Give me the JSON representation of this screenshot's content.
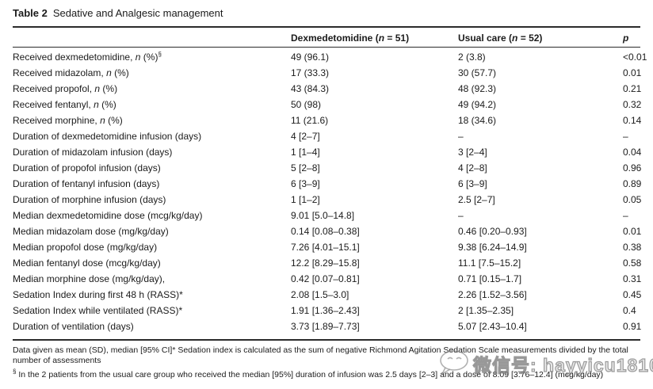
{
  "table": {
    "title": {
      "label": "Table 2",
      "text": "Sedative and Analgesic management"
    },
    "header": {
      "dex": {
        "pre": "Dexmedetomidine (",
        "it": "n",
        "post": " = 51)"
      },
      "usual": {
        "pre": "Usual care (",
        "it": "n",
        "post": " = 52)"
      },
      "p": {
        "it": "p"
      }
    },
    "rows": [
      {
        "label": {
          "pre": "Received dexmedetomidine, ",
          "it": "n",
          "post": " (%)",
          "sup": "§"
        },
        "dex": "49 (96.1)",
        "usual": "2 (3.8)",
        "p": "<0.01"
      },
      {
        "label": {
          "pre": "Received midazolam, ",
          "it": "n",
          "post": " (%)"
        },
        "dex": "17 (33.3)",
        "usual": "30 (57.7)",
        "p": "0.01"
      },
      {
        "label": {
          "pre": "Received propofol, ",
          "it": "n",
          "post": " (%)"
        },
        "dex": "43 (84.3)",
        "usual": "48 (92.3)",
        "p": "0.21"
      },
      {
        "label": {
          "pre": "Received fentanyl, ",
          "it": "n",
          "post": " (%)"
        },
        "dex": "50 (98)",
        "usual": "49 (94.2)",
        "p": "0.32"
      },
      {
        "label": {
          "pre": "Received morphine, ",
          "it": "n",
          "post": " (%)"
        },
        "dex": "11 (21.6)",
        "usual": "18 (34.6)",
        "p": "0.14"
      },
      {
        "label": {
          "pre": "Duration of dexmedetomidine infusion (days)"
        },
        "dex": "4 [2–7]",
        "usual": "–",
        "p": "–"
      },
      {
        "label": {
          "pre": "Duration of midazolam infusion (days)"
        },
        "dex": "1 [1–4]",
        "usual": "3 [2–4]",
        "p": "0.04"
      },
      {
        "label": {
          "pre": "Duration of propofol infusion (days)"
        },
        "dex": "5 [2–8]",
        "usual": "4 [2–8]",
        "p": "0.96"
      },
      {
        "label": {
          "pre": "Duration of fentanyl infusion (days)"
        },
        "dex": "6 [3–9]",
        "usual": "6 [3–9]",
        "p": "0.89"
      },
      {
        "label": {
          "pre": "Duration of morphine infusion (days)"
        },
        "dex": "1 [1–2]",
        "usual": "2.5 [2–7]",
        "p": "0.05"
      },
      {
        "label": {
          "pre": "Median dexmedetomidine dose (mcg/kg/day)"
        },
        "dex": "9.01 [5.0–14.8]",
        "usual": "–",
        "p": "–"
      },
      {
        "label": {
          "pre": "Median midazolam dose (mg/kg/day)"
        },
        "dex": "0.14 [0.08–0.38]",
        "usual": "0.46 [0.20–0.93]",
        "p": "0.01"
      },
      {
        "label": {
          "pre": "Median propofol dose (mg/kg/day)"
        },
        "dex": "7.26 [4.01–15.1]",
        "usual": "9.38 [6.24–14.9]",
        "p": "0.38"
      },
      {
        "label": {
          "pre": "Median fentanyl dose (mcg/kg/day)"
        },
        "dex": "12.2 [8.29–15.8]",
        "usual": "11.1 [7.5–15.2]",
        "p": "0.58"
      },
      {
        "label": {
          "pre": "Median morphine dose (mg/kg/day),"
        },
        "dex": "0.42 [0.07–0.81]",
        "usual": "0.71 [0.15–1.7]",
        "p": "0.31"
      },
      {
        "label": {
          "pre": "Sedation Index during first 48 h (RASS)*"
        },
        "dex": "2.08 [1.5–3.0]",
        "usual": "2.26 [1.52–3.56]",
        "p": "0.45"
      },
      {
        "label": {
          "pre": "Sedation Index while ventilated (RASS)*"
        },
        "dex": "1.91 [1.36–2.43]",
        "usual": "2 [1.35–2.35]",
        "p": "0.4"
      },
      {
        "label": {
          "pre": "Duration of ventilation (days)"
        },
        "dex": "3.73 [1.89–7.73]",
        "usual": "5.07 [2.43–10.4]",
        "p": "0.91"
      }
    ],
    "footnotes": {
      "line1": "Data given as mean (SD), median [95% CI]* Sedation index is calculated as the sum of negative Richmond Agitation Sedation Scale measurements divided by the total number of assessments",
      "note2_sup": "§",
      "note2": " In the 2 patients from the usual care group who received the median [95%] duration of infusion was 2.5 days [2–3] and a dose of 8.09 [3.76–12.4] (mcg/kg/day)"
    }
  },
  "watermark": {
    "icon": "chat-bubble-face-icon",
    "text": "微信号: hayyicu181031",
    "color": "#8f8f8f"
  }
}
